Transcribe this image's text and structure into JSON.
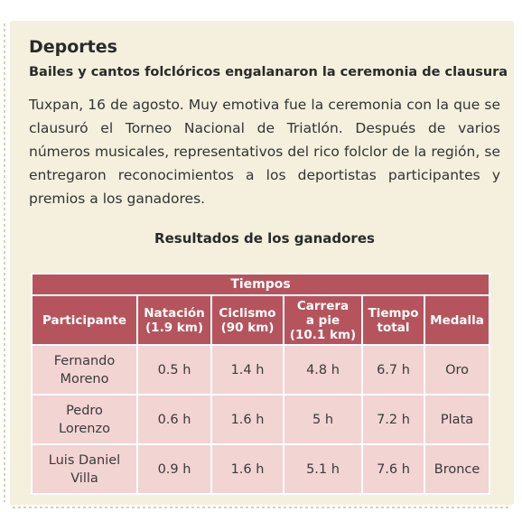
{
  "section": "Deportes",
  "headline": "Bailes y cantos folclóricos engalanaron la ceremonia de clausura",
  "body": "Tuxpan, 16 de agosto. Muy emotiva fue la ceremonia con la que se clausuró el Torneo Nacional de Triatlón. Después de varios números musicales, representativos del rico folclor de la región, se entregaron reconocimientos a los deportistas participantes y premios a los ganadores.",
  "table": {
    "title": "Resultados de los ganadores",
    "group_header": "Tiempos",
    "columns": {
      "participante": "Participante",
      "natacion": [
        "Natación",
        "(1.9 km)"
      ],
      "ciclismo": [
        "Ciclismo",
        "(90 km)"
      ],
      "carrera": [
        "Carrera",
        "a pie",
        "(10.1 km)"
      ],
      "total": [
        "Tiempo",
        "total"
      ],
      "medalla": "Medalla"
    },
    "rows": [
      {
        "name": [
          "Fernando",
          "Moreno"
        ],
        "natacion": "0.5 h",
        "ciclismo": "1.4 h",
        "carrera": "4.8 h",
        "total": "6.7 h",
        "medalla": "Oro"
      },
      {
        "name": [
          "Pedro",
          "Lorenzo"
        ],
        "natacion": "0.6 h",
        "ciclismo": "1.6 h",
        "carrera": "5 h",
        "total": "7.2 h",
        "medalla": "Plata"
      },
      {
        "name": [
          "Luis Daniel",
          "Villa"
        ],
        "natacion": "0.9 h",
        "ciclismo": "1.6 h",
        "carrera": "5.1 h",
        "total": "7.6 h",
        "medalla": "Bronce"
      }
    ]
  },
  "colors": {
    "background": "#f4f0dd",
    "header": "#b5545c",
    "cell": "#f2d4d2"
  }
}
